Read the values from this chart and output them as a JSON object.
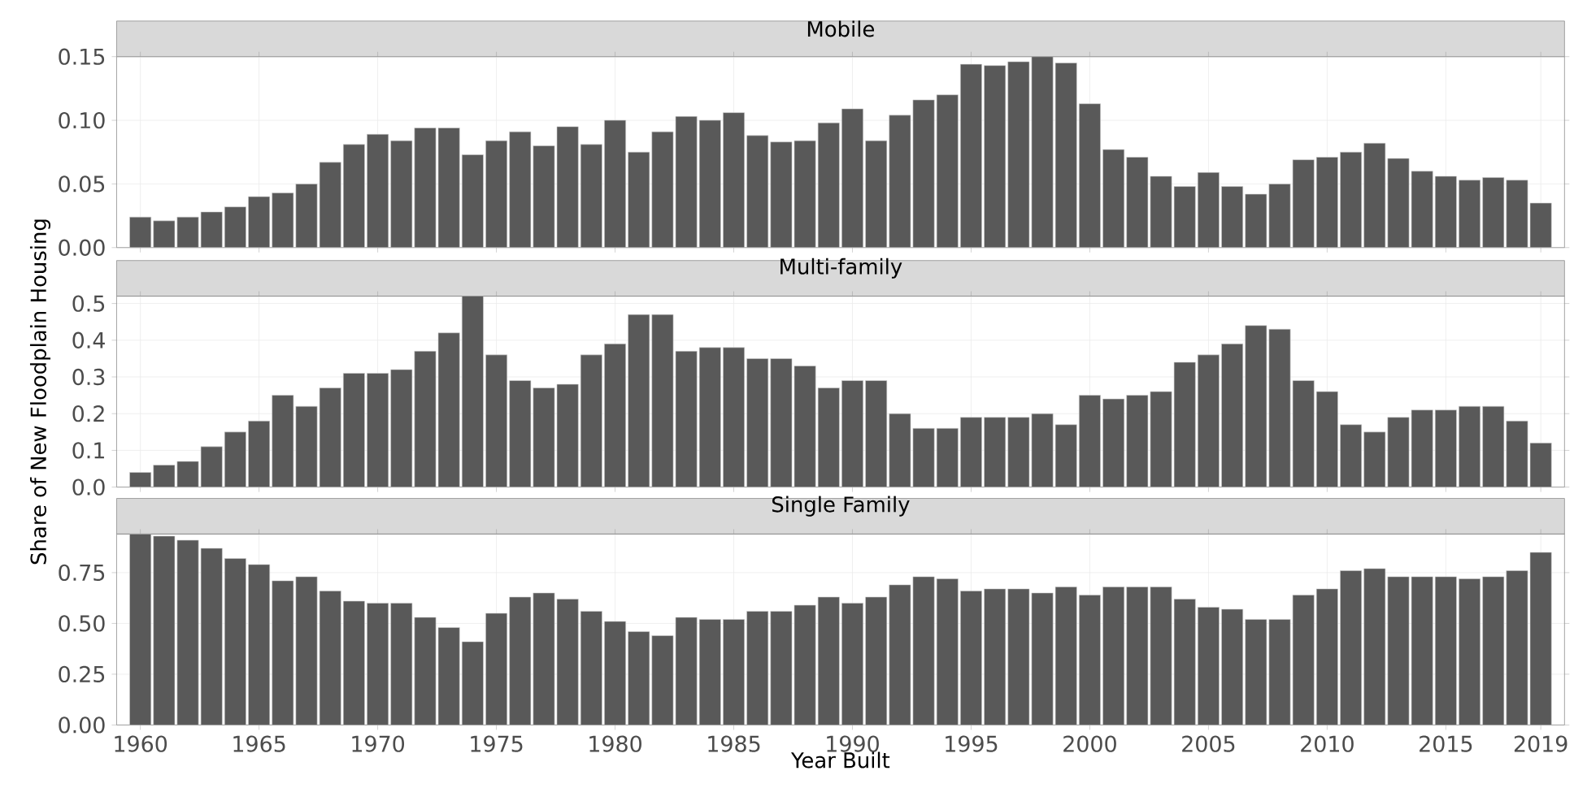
{
  "chart_data": [
    {
      "type": "bar",
      "title": "Mobile",
      "color": "#595959",
      "grid": true,
      "tick_labels": "y",
      "xlim": [
        1959,
        2020
      ],
      "xticks": [
        1960,
        1965,
        1970,
        1975,
        1980,
        1985,
        1990,
        1995,
        2000,
        2005,
        2010,
        2015,
        2019
      ],
      "ylim": [
        0,
        0.15
      ],
      "yticks": [
        {
          "value": 0,
          "label": "0.00"
        },
        {
          "value": 0.05,
          "label": "0.05"
        },
        {
          "value": 0.1,
          "label": "0.10"
        },
        {
          "value": 0.15,
          "label": "0.15"
        }
      ],
      "x": [
        1960,
        1961,
        1962,
        1963,
        1964,
        1965,
        1966,
        1967,
        1968,
        1969,
        1970,
        1971,
        1972,
        1973,
        1974,
        1975,
        1976,
        1977,
        1978,
        1979,
        1980,
        1981,
        1982,
        1983,
        1984,
        1985,
        1986,
        1987,
        1988,
        1989,
        1990,
        1991,
        1992,
        1993,
        1994,
        1995,
        1996,
        1997,
        1998,
        1999,
        2000,
        2001,
        2002,
        2003,
        2004,
        2005,
        2006,
        2007,
        2008,
        2009,
        2010,
        2011,
        2012,
        2013,
        2014,
        2015,
        2016,
        2017,
        2018,
        2019
      ],
      "values": [
        0.024,
        0.021,
        0.024,
        0.028,
        0.032,
        0.04,
        0.043,
        0.05,
        0.067,
        0.081,
        0.089,
        0.084,
        0.094,
        0.094,
        0.073,
        0.084,
        0.091,
        0.08,
        0.095,
        0.081,
        0.1,
        0.075,
        0.091,
        0.103,
        0.1,
        0.106,
        0.088,
        0.083,
        0.084,
        0.098,
        0.109,
        0.084,
        0.104,
        0.116,
        0.12,
        0.144,
        0.143,
        0.146,
        0.15,
        0.145,
        0.113,
        0.077,
        0.071,
        0.056,
        0.048,
        0.059,
        0.048,
        0.042,
        0.05,
        0.069,
        0.071,
        0.075,
        0.082,
        0.07,
        0.06,
        0.056,
        0.053,
        0.055,
        0.053,
        0.035
      ]
    },
    {
      "type": "bar",
      "title": "Multi-family",
      "ylabel": "Share of New Floodplain Housing",
      "color": "#595959",
      "grid": true,
      "tick_labels": "y",
      "xlim": [
        1959,
        2020
      ],
      "xticks": [
        1960,
        1965,
        1970,
        1975,
        1980,
        1985,
        1990,
        1995,
        2000,
        2005,
        2010,
        2015,
        2019
      ],
      "ylim": [
        0,
        0.52
      ],
      "yticks": [
        {
          "value": 0,
          "label": "0.0"
        },
        {
          "value": 0.1,
          "label": "0.1"
        },
        {
          "value": 0.2,
          "label": "0.2"
        },
        {
          "value": 0.3,
          "label": "0.3"
        },
        {
          "value": 0.4,
          "label": "0.4"
        },
        {
          "value": 0.5,
          "label": "0.5"
        }
      ],
      "x": [
        1960,
        1961,
        1962,
        1963,
        1964,
        1965,
        1966,
        1967,
        1968,
        1969,
        1970,
        1971,
        1972,
        1973,
        1974,
        1975,
        1976,
        1977,
        1978,
        1979,
        1980,
        1981,
        1982,
        1983,
        1984,
        1985,
        1986,
        1987,
        1988,
        1989,
        1990,
        1991,
        1992,
        1993,
        1994,
        1995,
        1996,
        1997,
        1998,
        1999,
        2000,
        2001,
        2002,
        2003,
        2004,
        2005,
        2006,
        2007,
        2008,
        2009,
        2010,
        2011,
        2012,
        2013,
        2014,
        2015,
        2016,
        2017,
        2018,
        2019
      ],
      "values": [
        0.04,
        0.06,
        0.07,
        0.11,
        0.15,
        0.18,
        0.25,
        0.22,
        0.27,
        0.31,
        0.31,
        0.32,
        0.37,
        0.42,
        0.52,
        0.36,
        0.29,
        0.27,
        0.28,
        0.36,
        0.39,
        0.47,
        0.47,
        0.37,
        0.38,
        0.38,
        0.35,
        0.35,
        0.33,
        0.27,
        0.29,
        0.29,
        0.2,
        0.16,
        0.16,
        0.19,
        0.19,
        0.19,
        0.2,
        0.17,
        0.25,
        0.24,
        0.25,
        0.26,
        0.34,
        0.36,
        0.39,
        0.44,
        0.43,
        0.29,
        0.26,
        0.17,
        0.15,
        0.19,
        0.21,
        0.21,
        0.22,
        0.22,
        0.18,
        0.12
      ]
    },
    {
      "type": "bar",
      "title": "Single Family",
      "xlabel": "Year Built",
      "color": "#595959",
      "grid": true,
      "xlim": [
        1959,
        2020
      ],
      "xticks": [
        1960,
        1965,
        1970,
        1975,
        1980,
        1985,
        1990,
        1995,
        2000,
        2005,
        2010,
        2015,
        2019
      ],
      "ylim": [
        0,
        0.94
      ],
      "yticks": [
        {
          "value": 0,
          "label": "0.00"
        },
        {
          "value": 0.25,
          "label": "0.25"
        },
        {
          "value": 0.5,
          "label": "0.50"
        },
        {
          "value": 0.75,
          "label": "0.75"
        }
      ],
      "x": [
        1960,
        1961,
        1962,
        1963,
        1964,
        1965,
        1966,
        1967,
        1968,
        1969,
        1970,
        1971,
        1972,
        1973,
        1974,
        1975,
        1976,
        1977,
        1978,
        1979,
        1980,
        1981,
        1982,
        1983,
        1984,
        1985,
        1986,
        1987,
        1988,
        1989,
        1990,
        1991,
        1992,
        1993,
        1994,
        1995,
        1996,
        1997,
        1998,
        1999,
        2000,
        2001,
        2002,
        2003,
        2004,
        2005,
        2006,
        2007,
        2008,
        2009,
        2010,
        2011,
        2012,
        2013,
        2014,
        2015,
        2016,
        2017,
        2018,
        2019
      ],
      "values": [
        0.94,
        0.93,
        0.91,
        0.87,
        0.82,
        0.79,
        0.71,
        0.73,
        0.66,
        0.61,
        0.6,
        0.6,
        0.53,
        0.48,
        0.41,
        0.55,
        0.63,
        0.65,
        0.62,
        0.56,
        0.51,
        0.46,
        0.44,
        0.53,
        0.52,
        0.52,
        0.56,
        0.56,
        0.59,
        0.63,
        0.6,
        0.63,
        0.69,
        0.73,
        0.72,
        0.66,
        0.67,
        0.67,
        0.65,
        0.68,
        0.64,
        0.68,
        0.68,
        0.68,
        0.62,
        0.58,
        0.57,
        0.52,
        0.52,
        0.64,
        0.67,
        0.76,
        0.77,
        0.73,
        0.73,
        0.73,
        0.72,
        0.73,
        0.76,
        0.85
      ]
    }
  ]
}
